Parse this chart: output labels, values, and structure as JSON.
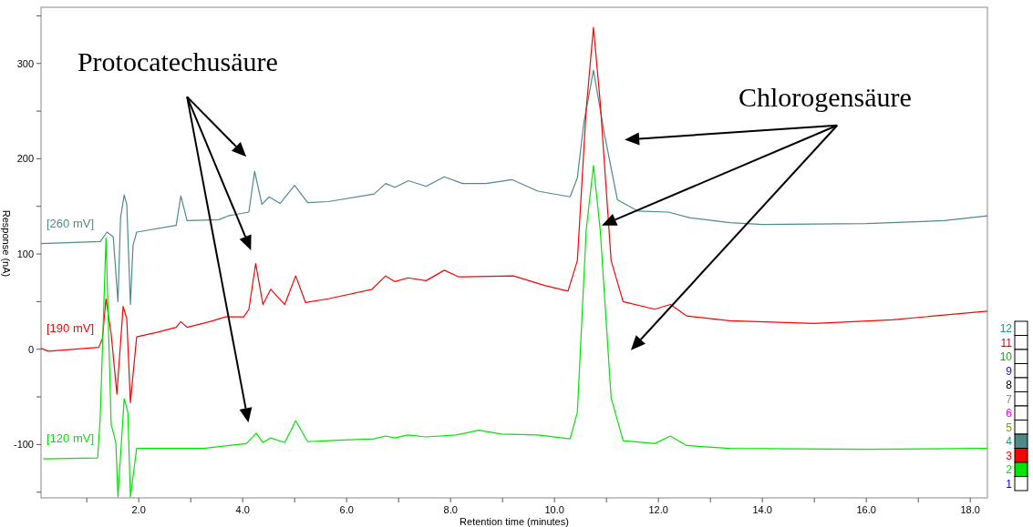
{
  "chart_data": {
    "type": "line",
    "xlabel": "Retention time (minutes)",
    "ylabel": "Response (nA)",
    "xlim": [
      0.12,
      18.33
    ],
    "ylim": [
      -156,
      359
    ],
    "xticks": [
      {
        "value": 1,
        "label": null
      },
      {
        "value": 2,
        "label": "2.0"
      },
      {
        "value": 3,
        "label": null
      },
      {
        "value": 4,
        "label": "4.0"
      },
      {
        "value": 5,
        "label": null
      },
      {
        "value": 6,
        "label": "6.0"
      },
      {
        "value": 7,
        "label": null
      },
      {
        "value": 8,
        "label": "8.0"
      },
      {
        "value": 9,
        "label": null
      },
      {
        "value": 10,
        "label": "10.0"
      },
      {
        "value": 11,
        "label": null
      },
      {
        "value": 12,
        "label": "12.0"
      },
      {
        "value": 13,
        "label": null
      },
      {
        "value": 14,
        "label": "14.0"
      },
      {
        "value": 15,
        "label": null
      },
      {
        "value": 16,
        "label": "16.0"
      },
      {
        "value": 17,
        "label": null
      },
      {
        "value": 18,
        "label": "18.0"
      }
    ],
    "yticks": [
      {
        "value": -150,
        "label": null
      },
      -100,
      {
        "value": -50,
        "label": null
      },
      0,
      {
        "value": 50,
        "label": null
      },
      100,
      {
        "value": 150,
        "label": null
      },
      200,
      {
        "value": 250,
        "label": null
      },
      300,
      {
        "value": 350,
        "label": null
      }
    ],
    "grid": false,
    "marker": "none",
    "line_style": "solid",
    "series": [
      {
        "name": "[260 mV]",
        "color": "#4f8a8b",
        "x": [
          0.12,
          1.26,
          1.39,
          1.51,
          1.6,
          1.65,
          1.72,
          1.77,
          1.84,
          1.89,
          1.96,
          2.72,
          2.81,
          2.93,
          3.54,
          3.72,
          4.12,
          4.23,
          4.37,
          4.51,
          4.72,
          5.0,
          5.25,
          5.65,
          6.53,
          6.75,
          6.93,
          7.19,
          7.53,
          7.88,
          8.23,
          8.68,
          9.19,
          9.68,
          10.3,
          10.44,
          10.56,
          10.75,
          10.96,
          11.21,
          11.61,
          12.19,
          12.61,
          13.37,
          14.0,
          16.0,
          17.5,
          18.33
        ],
        "values": [
          111,
          113,
          123,
          118,
          50,
          138,
          162,
          152,
          47,
          109,
          123,
          130,
          161,
          135,
          136,
          140,
          144,
          187,
          152,
          160,
          153,
          172,
          154,
          155,
          163,
          174,
          170,
          177,
          171,
          181,
          174,
          174,
          178,
          166,
          160,
          180,
          236,
          293,
          226,
          157,
          145,
          144,
          138,
          133,
          131,
          132,
          135,
          140
        ]
      },
      {
        "name": "[190 mV]",
        "color": "#ff0000",
        "x": [
          0.12,
          0.26,
          1.23,
          1.3,
          1.37,
          1.47,
          1.58,
          1.7,
          1.77,
          1.84,
          1.96,
          2.37,
          2.72,
          2.81,
          2.93,
          3.37,
          3.67,
          4.02,
          4.12,
          4.25,
          4.39,
          4.54,
          4.81,
          5.02,
          5.21,
          5.65,
          6.49,
          6.75,
          6.93,
          7.18,
          7.53,
          7.88,
          8.16,
          9.21,
          9.81,
          10.26,
          10.44,
          10.61,
          10.75,
          10.88,
          11.09,
          11.32,
          11.93,
          12.23,
          12.54,
          13.37,
          15.0,
          16.5,
          18.33
        ],
        "values": [
          1,
          -2,
          2,
          11,
          53,
          16,
          -47,
          45,
          32,
          -56,
          13,
          18,
          23,
          29,
          23,
          29,
          34,
          34,
          42,
          90,
          47,
          63,
          47,
          77,
          49,
          53,
          63,
          77,
          71,
          75,
          72,
          83,
          76,
          77,
          67,
          61,
          93,
          252,
          338,
          259,
          93,
          50,
          42,
          47,
          35,
          30,
          27,
          31,
          40
        ]
      },
      {
        "name": "[120 mV]",
        "color": "#00e600",
        "x": [
          0.16,
          1.21,
          1.26,
          1.37,
          1.47,
          1.56,
          1.6,
          1.72,
          1.79,
          1.84,
          1.96,
          2.37,
          3.25,
          4.07,
          4.26,
          4.39,
          4.54,
          4.81,
          5.02,
          5.25,
          5.65,
          6.53,
          6.75,
          6.93,
          7.18,
          7.53,
          8.11,
          8.54,
          8.98,
          9.68,
          10.3,
          10.44,
          10.61,
          10.75,
          10.88,
          11.09,
          11.32,
          11.93,
          12.23,
          12.54,
          13.37,
          16.0,
          18.33
        ],
        "values": [
          -115,
          -114,
          -71,
          117,
          -79,
          -98,
          -155,
          -52,
          -66,
          -155,
          -104,
          -104,
          -104,
          -99,
          -88,
          -98,
          -93,
          -98,
          -75,
          -97,
          -96,
          -94,
          -91,
          -93,
          -90,
          -92,
          -90,
          -85,
          -89,
          -90,
          -94,
          -66,
          125,
          193,
          125,
          -51,
          -96,
          -99,
          -91,
          -101,
          -104,
          -105,
          -104
        ]
      }
    ],
    "annotations": [
      "Protocatechusäure",
      "Chlorogensäure",
      "12",
      "11",
      "10",
      "9",
      "8",
      "7",
      "6",
      "5",
      "4",
      "3",
      "2",
      "1"
    ]
  }
}
